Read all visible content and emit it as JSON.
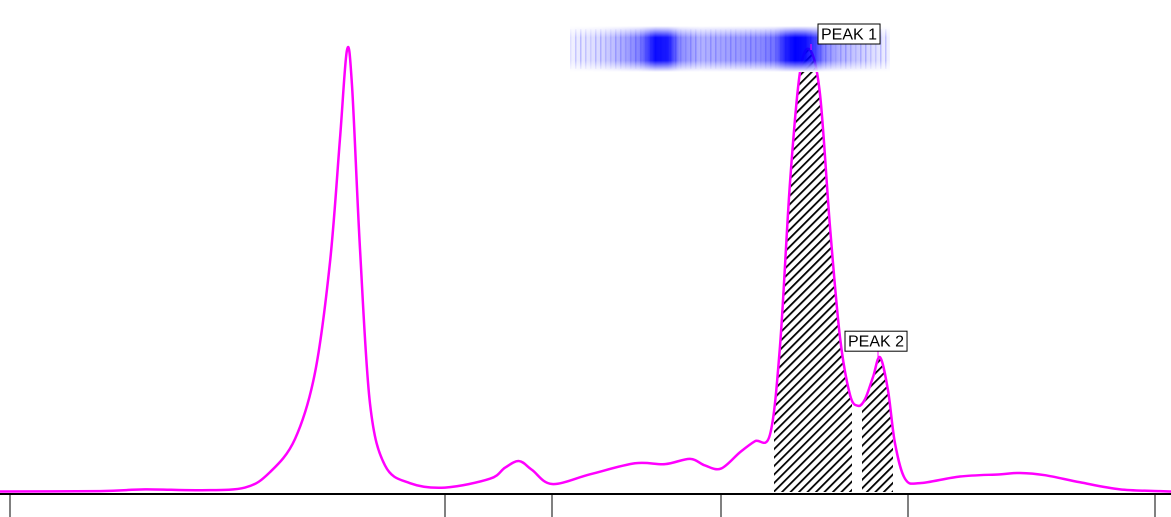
{
  "chart_data": {
    "type": "line",
    "title": "",
    "xlabel": "",
    "ylabel": "",
    "xlim": [
      0,
      1171
    ],
    "ylim": [
      0,
      100
    ],
    "grid": false,
    "colors": {
      "trace": "#ff00ff",
      "band": "#0000ff",
      "hatch": "#000000",
      "axis": "#000000"
    },
    "axis_ticks": [
      10,
      445,
      552,
      721,
      908,
      1155
    ],
    "series": [
      {
        "x": [
          0,
          100,
          145,
          200,
          245,
          270,
          295,
          315,
          330,
          340,
          347,
          352,
          360,
          370,
          385,
          410,
          445,
          490,
          505,
          519,
          532,
          552,
          590,
          635,
          665,
          690,
          705,
          721,
          740,
          755,
          770,
          780,
          790,
          800,
          810,
          820,
          830,
          840,
          850,
          858,
          865,
          873,
          880,
          888,
          895,
          905,
          920,
          960,
          1000,
          1020,
          1045,
          1080,
          1120,
          1160,
          1171
        ],
        "y": [
          0.1,
          0.2,
          0.6,
          0.4,
          1.0,
          4.5,
          12,
          27,
          52,
          80,
          100,
          92,
          55,
          20,
          6,
          2,
          1.0,
          3,
          5.5,
          7,
          5,
          1.8,
          4,
          6.5,
          6.3,
          7.5,
          6,
          5.3,
          9,
          11.5,
          13,
          33,
          70,
          95,
          100,
          90,
          60,
          35,
          22,
          19.5,
          21,
          26,
          30.5,
          23,
          11,
          3,
          2,
          3.5,
          4,
          4.3,
          3.8,
          2.2,
          0.6,
          0.2,
          0.1
        ]
      }
    ],
    "shaded_regions": [
      {
        "x_start": 774,
        "x_end": 852
      },
      {
        "x_start": 862,
        "x_end": 893
      }
    ],
    "peaks": [
      {
        "label": "PEAK 1",
        "x": 811,
        "y": 100
      },
      {
        "label": "PEAK 2",
        "x": 878,
        "y": 30.5
      }
    ],
    "band_image": {
      "x_start": 570,
      "x_end": 890,
      "intensity_x": [
        570,
        600,
        620,
        640,
        655,
        668,
        680,
        700,
        720,
        740,
        760,
        775,
        785,
        795,
        805,
        815,
        825,
        840,
        860,
        890
      ],
      "intensity": [
        0.05,
        0.15,
        0.3,
        0.5,
        0.95,
        0.9,
        0.45,
        0.3,
        0.35,
        0.4,
        0.45,
        0.55,
        0.85,
        1.0,
        0.95,
        0.75,
        0.45,
        0.3,
        0.2,
        0.05
      ]
    }
  }
}
